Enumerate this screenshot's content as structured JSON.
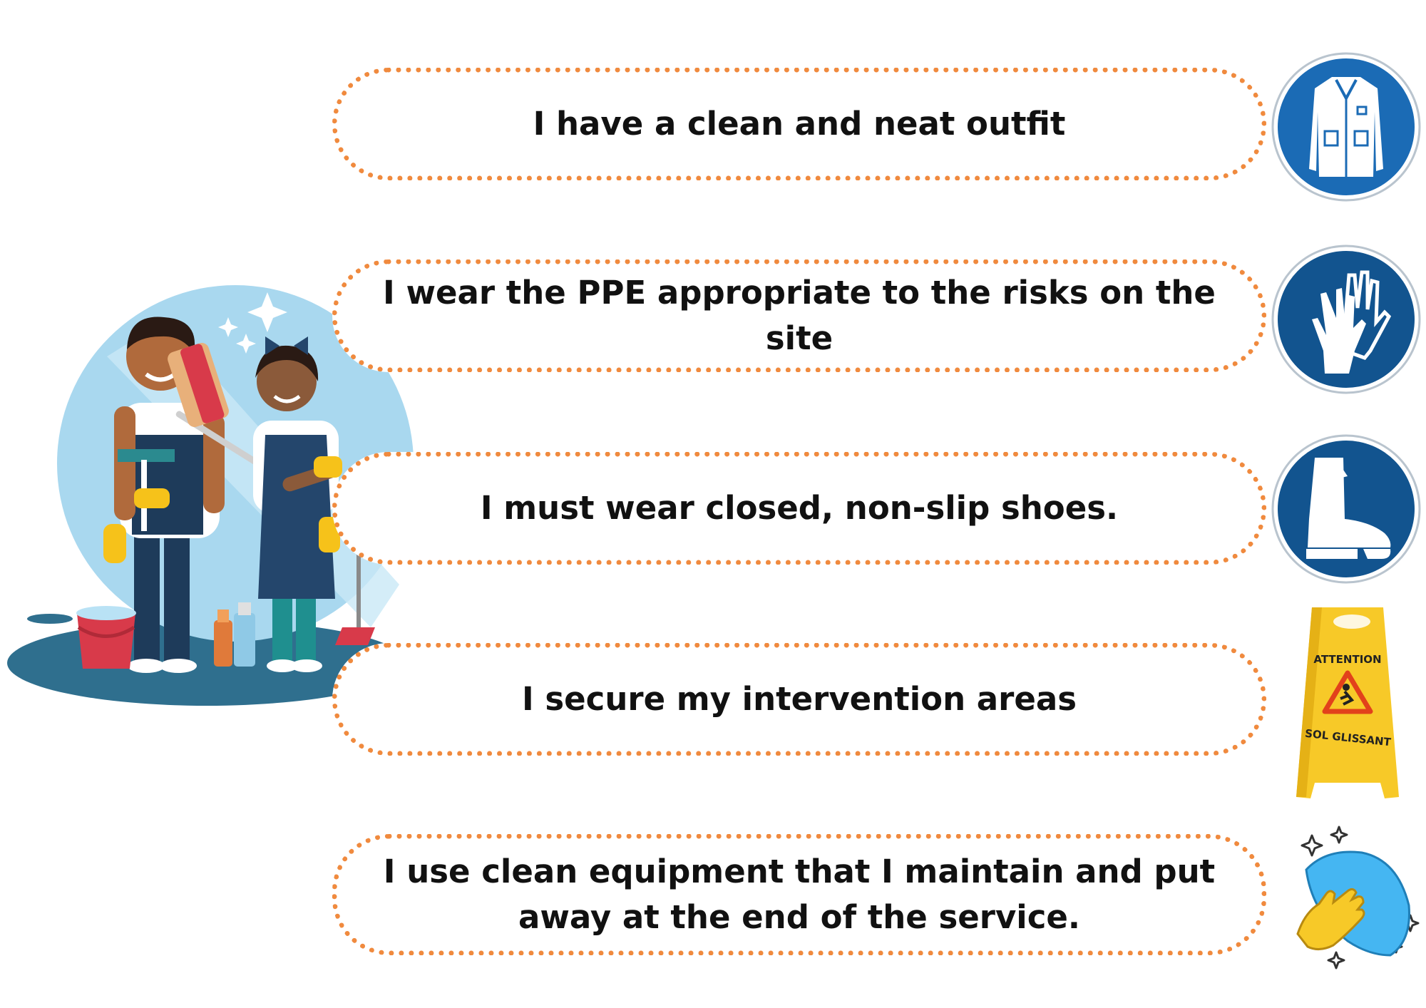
{
  "rules": [
    {
      "text": "I have a clean and neat outfit",
      "icon": "lab-coat-icon"
    },
    {
      "text": "I wear the PPE appropriate to the risks on the site",
      "icon": "gloves-icon"
    },
    {
      "text": "I must wear closed, non-slip shoes.",
      "icon": "safety-boot-icon"
    },
    {
      "text": "I secure my intervention areas",
      "icon": "wet-floor-sign-icon"
    },
    {
      "text": "I use clean equipment that I maintain and put away at the end of the service.",
      "icon": "cleaning-cloth-icon"
    }
  ],
  "wet_floor_sign": {
    "top_text": "ATTENTION",
    "bottom_text": "SOL GLISSANT"
  },
  "colors": {
    "border": "#f08a3e",
    "sign_blue": "#1b6bb5",
    "sign_blue_dark": "#12548f",
    "caution_yellow": "#f7c928"
  }
}
